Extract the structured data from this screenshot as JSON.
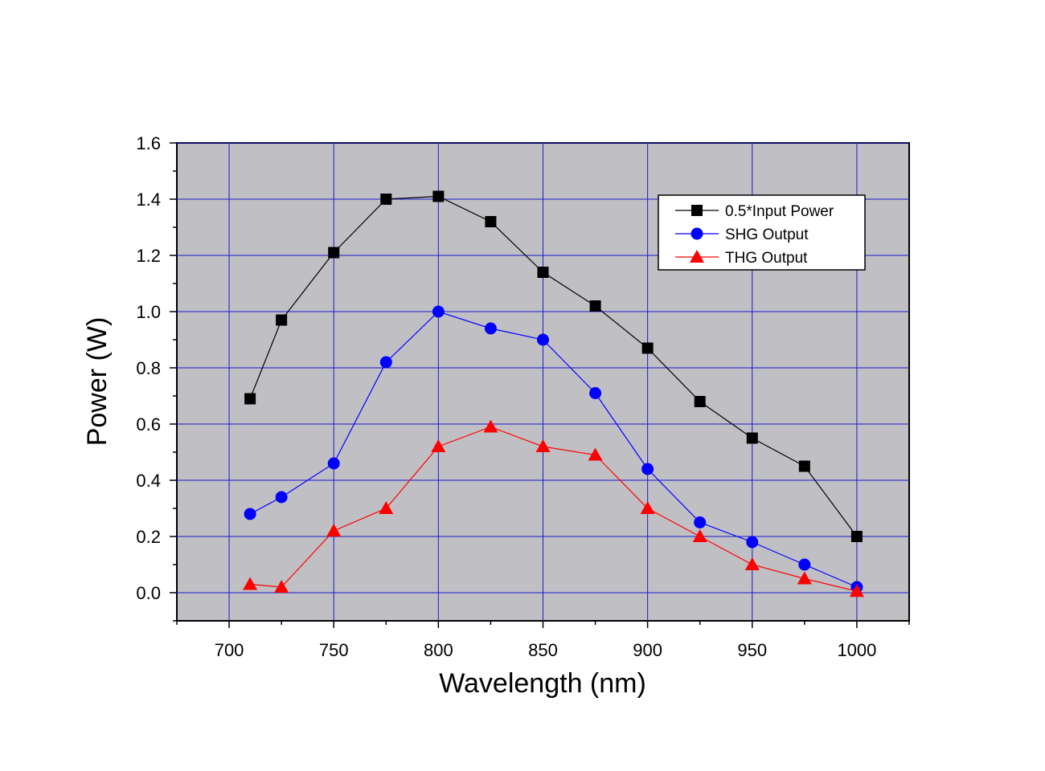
{
  "chart_data": {
    "type": "line",
    "title": "",
    "xlabel": "Wavelength (nm)",
    "ylabel": "Power (W)",
    "xlim": [
      675,
      1025
    ],
    "ylim": [
      -0.1,
      1.6
    ],
    "xticks": [
      700,
      750,
      800,
      850,
      900,
      950,
      1000
    ],
    "xtick_labels": [
      "700",
      "750",
      "800",
      "850",
      "900",
      "950",
      "1000"
    ],
    "yticks": [
      0.0,
      0.2,
      0.4,
      0.6,
      0.8,
      1.0,
      1.2,
      1.4,
      1.6
    ],
    "ytick_labels": [
      "0.0",
      "0.2",
      "0.4",
      "0.6",
      "0.8",
      "1.0",
      "1.2",
      "1.4",
      "1.6"
    ],
    "grid": true,
    "grid_color": "#1a1acc",
    "plot_background": "#c0bfc4",
    "legend_position": "top-right",
    "series": [
      {
        "name": "0.5*Input Power",
        "color": "#000000",
        "marker": "square",
        "x": [
          710,
          725,
          750,
          775,
          800,
          825,
          850,
          875,
          900,
          925,
          950,
          975,
          1000
        ],
        "values": [
          0.69,
          0.97,
          1.21,
          1.4,
          1.41,
          1.32,
          1.14,
          1.02,
          0.87,
          0.68,
          0.55,
          0.45,
          0.2
        ]
      },
      {
        "name": "SHG Output",
        "color": "#0000ff",
        "marker": "circle",
        "x": [
          710,
          725,
          750,
          775,
          800,
          825,
          850,
          875,
          900,
          925,
          950,
          975,
          1000
        ],
        "values": [
          0.28,
          0.34,
          0.46,
          0.82,
          1.0,
          0.94,
          0.9,
          0.71,
          0.44,
          0.25,
          0.18,
          0.1,
          0.02
        ]
      },
      {
        "name": "THG Output",
        "color": "#ff0000",
        "marker": "triangle",
        "x": [
          710,
          725,
          750,
          775,
          800,
          825,
          850,
          875,
          900,
          925,
          950,
          975,
          1000
        ],
        "values": [
          0.03,
          0.02,
          0.22,
          0.3,
          0.52,
          0.59,
          0.52,
          0.49,
          0.3,
          0.2,
          0.1,
          0.05,
          0.005
        ]
      }
    ]
  }
}
